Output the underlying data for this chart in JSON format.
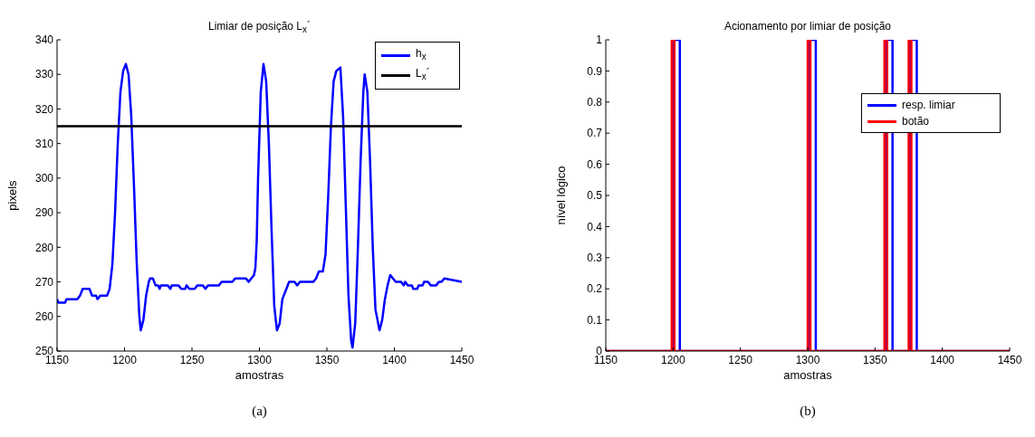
{
  "chart_data": [
    {
      "type": "line",
      "title": "Limiar de posição L$_{x}$´",
      "xlabel": "amostras",
      "ylabel": "pixels",
      "xlim": [
        1150,
        1450
      ],
      "xticks": [
        1150,
        1200,
        1250,
        1300,
        1350,
        1400,
        1450
      ],
      "ylim": [
        250,
        340
      ],
      "yticks": [
        250,
        260,
        270,
        280,
        290,
        300,
        310,
        320,
        330,
        340
      ],
      "legend": "top right",
      "annotations": [
        "(a)"
      ],
      "series": [
        {
          "name": "h$_{x}$",
          "color": "#0000ff",
          "x": [
            1150,
            1151,
            1156,
            1157,
            1165,
            1167,
            1169,
            1174,
            1176,
            1179,
            1180,
            1182,
            1187,
            1189,
            1191,
            1193,
            1195,
            1197,
            1199,
            1201,
            1203,
            1205,
            1207,
            1209,
            1211,
            1212,
            1214,
            1216,
            1218,
            1219,
            1221,
            1223,
            1225,
            1226,
            1227,
            1232,
            1234,
            1235,
            1240,
            1242,
            1245,
            1246,
            1248,
            1252,
            1254,
            1258,
            1260,
            1262,
            1270,
            1272,
            1280,
            1282,
            1290,
            1292,
            1294,
            1296,
            1297,
            1298,
            1299,
            1301,
            1303,
            1305,
            1307,
            1309,
            1311,
            1313,
            1315,
            1317,
            1320,
            1322,
            1326,
            1328,
            1330,
            1340,
            1342,
            1344,
            1347,
            1349,
            1351,
            1353,
            1355,
            1357,
            1360,
            1362,
            1364,
            1366,
            1368,
            1369,
            1371,
            1373,
            1375,
            1377,
            1378,
            1380,
            1382,
            1384,
            1386,
            1389,
            1391,
            1393,
            1395,
            1397,
            1399,
            1401,
            1405,
            1407,
            1408,
            1410,
            1413,
            1414,
            1417,
            1418,
            1421,
            1422,
            1425,
            1427,
            1431,
            1433,
            1435,
            1437,
            1450
          ],
          "values": [
            265,
            264,
            264,
            265,
            265,
            266,
            268,
            268,
            266,
            266,
            265,
            266,
            266,
            268,
            275,
            290,
            310,
            325,
            331,
            333,
            330,
            318,
            298,
            276,
            260,
            256,
            259,
            266,
            270,
            271,
            271,
            269,
            269,
            268,
            269,
            269,
            268,
            269,
            269,
            268,
            268,
            269,
            268,
            268,
            269,
            269,
            268,
            269,
            269,
            270,
            270,
            271,
            271,
            270,
            271,
            272,
            274,
            282,
            300,
            325,
            333,
            328,
            310,
            285,
            263,
            256,
            258,
            265,
            268,
            270,
            270,
            269,
            270,
            270,
            271,
            273,
            273,
            278,
            295,
            315,
            328,
            331,
            332,
            318,
            292,
            266,
            253,
            251,
            258,
            280,
            305,
            325,
            330,
            325,
            305,
            280,
            262,
            256,
            259,
            265,
            269,
            272,
            271,
            270,
            270,
            269,
            270,
            269,
            269,
            268,
            268,
            269,
            269,
            270,
            270,
            269,
            269,
            270,
            270,
            271,
            270
          ]
        },
        {
          "name": "L$_{x}$´",
          "color": "#000000",
          "x": [
            1150,
            1450
          ],
          "values": [
            315,
            315
          ]
        }
      ]
    },
    {
      "type": "step",
      "title": "Acionamento por limiar de posição",
      "xlabel": "amostras",
      "ylabel": "nível lógico",
      "xlim": [
        1150,
        1450
      ],
      "xticks": [
        1150,
        1200,
        1250,
        1300,
        1350,
        1400,
        1450
      ],
      "ylim": [
        0,
        1
      ],
      "yticks": [
        0,
        0.1,
        0.2,
        0.3,
        0.4,
        0.5,
        0.6,
        0.7,
        0.8,
        0.9,
        1
      ],
      "legend": "top right",
      "annotations": [
        "(b)"
      ],
      "series": [
        {
          "name": "resp. limiar",
          "color": "#0000ff",
          "x": [
            1150,
            1200,
            1205,
            1301,
            1306,
            1358,
            1363,
            1376,
            1381,
            1450
          ],
          "values": [
            0,
            1,
            0,
            1,
            0,
            1,
            0,
            1,
            0,
            0
          ]
        },
        {
          "name": "botão",
          "color": "#ff0000",
          "x": [
            1150,
            1199,
            1201,
            1300,
            1302,
            1357,
            1359,
            1375,
            1377,
            1450
          ],
          "values": [
            0,
            1,
            0,
            1,
            0,
            1,
            0,
            1,
            0,
            0
          ]
        }
      ]
    }
  ]
}
